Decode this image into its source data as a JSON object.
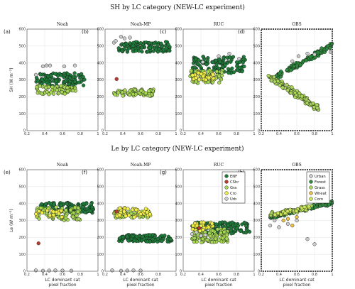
{
  "colors": {
    "ENF": "#1f7a3a",
    "CShr": "#c0392b",
    "Gra": "#a6d854",
    "Cro": "#f1ee4a",
    "Urb": "#cccccc",
    "Forest": "#2e8b3e",
    "Grass": "#a9d65a",
    "Wheat": "#e8c24a",
    "Corn": "#cbe85a",
    "Urban": "#cccccc"
  },
  "figure": {
    "row1_title": "SH by LC category (NEW-LC experiment)",
    "row2_title": "Le by LC category (NEW-LC experiment)"
  },
  "chart_data": [
    {
      "id": "a",
      "label": "(a)",
      "title": "Noah",
      "type": "scatter",
      "xlim": [
        0.2,
        1
      ],
      "ylim": [
        0,
        600
      ],
      "ylabel": "SH (W m⁻²)",
      "xlabel": "",
      "series": [
        {
          "name": "ENF",
          "cloud": {
            "x": [
              0.3,
              0.85
            ],
            "y": [
              265,
              340
            ],
            "n": 110
          }
        },
        {
          "name": "Gra",
          "cloud": {
            "x": [
              0.3,
              0.75
            ],
            "y": [
              215,
              265
            ],
            "n": 70
          }
        },
        {
          "name": "Urb",
          "points": [
            [
              0.3,
              330
            ],
            [
              0.38,
              380
            ],
            [
              0.42,
              385
            ],
            [
              0.46,
              385
            ],
            [
              0.62,
              380
            ],
            [
              0.74,
              385
            ]
          ]
        }
      ]
    },
    {
      "id": "b",
      "label": "(b)",
      "title": "Noah-MP",
      "type": "scatter",
      "xlim": [
        0.2,
        1
      ],
      "ylim": [
        0,
        600
      ],
      "ylabel": "",
      "xlabel": "",
      "series": [
        {
          "name": "ENF",
          "cloud": {
            "x": [
              0.35,
              0.95
            ],
            "y": [
              465,
              525
            ],
            "n": 110
          }
        },
        {
          "name": "Gra",
          "cloud": {
            "x": [
              0.3,
              0.75
            ],
            "y": [
              205,
              245
            ],
            "n": 70
          }
        },
        {
          "name": "CShr",
          "points": [
            [
              0.33,
              305
            ]
          ]
        },
        {
          "name": "Urb",
          "points": [
            [
              0.3,
              520
            ],
            [
              0.32,
              530
            ],
            [
              0.38,
              555
            ],
            [
              0.42,
              545
            ],
            [
              0.48,
              550
            ]
          ]
        }
      ]
    },
    {
      "id": "c",
      "label": "(c)",
      "title": "RUC",
      "type": "scatter",
      "xlim": [
        0.2,
        1
      ],
      "ylim": [
        0,
        600
      ],
      "ylabel": "",
      "xlabel": "",
      "series": [
        {
          "name": "ENF",
          "cloud": {
            "x": [
              0.3,
              0.9
            ],
            "y": [
              340,
              440
            ],
            "n": 120
          }
        },
        {
          "name": "Gra",
          "cloud": {
            "x": [
              0.28,
              0.65
            ],
            "y": [
              280,
              360
            ],
            "n": 80
          }
        },
        {
          "name": "Cro",
          "cloud": {
            "x": [
              0.3,
              0.55
            ],
            "y": [
              300,
              345
            ],
            "n": 30
          }
        },
        {
          "name": "Urb",
          "points": [
            [
              0.42,
              405
            ],
            [
              0.6,
              440
            ],
            [
              0.72,
              455
            ],
            [
              0.83,
              425
            ]
          ]
        }
      ]
    },
    {
      "id": "d",
      "label": "(d)",
      "title": "OBS",
      "type": "scatter",
      "xlim": [
        0.2,
        1
      ],
      "ylim": [
        0,
        600
      ],
      "ylabel": "",
      "xlabel": "",
      "series": [
        {
          "name": "Forest",
          "trend": {
            "x": [
              0.3,
              1.0
            ],
            "y": [
              300,
              505
            ],
            "spread": 22,
            "n": 130
          }
        },
        {
          "name": "Grass",
          "trend": {
            "x": [
              0.28,
              0.85
            ],
            "y": [
              320,
              130
            ],
            "spread": 28,
            "n": 150
          }
        },
        {
          "name": "Urban",
          "points": [
            [
              0.55,
              410
            ],
            [
              0.62,
              440
            ],
            [
              0.72,
              455
            ],
            [
              0.8,
              450
            ],
            [
              0.98,
              465
            ]
          ]
        }
      ]
    },
    {
      "id": "e",
      "label": "(e)",
      "title": "Noah",
      "type": "scatter",
      "xlim": [
        0.2,
        1
      ],
      "ylim": [
        0,
        600
      ],
      "ylabel": "Le (W m⁻²)",
      "xlabel": "LC dominant cat pixel fraction",
      "series": [
        {
          "name": "ENF",
          "cloud": {
            "x": [
              0.35,
              0.95
            ],
            "y": [
              345,
              405
            ],
            "n": 110
          }
        },
        {
          "name": "Gra",
          "cloud": {
            "x": [
              0.3,
              0.8
            ],
            "y": [
              300,
              380
            ],
            "n": 90
          }
        },
        {
          "name": "Cro",
          "cloud": {
            "x": [
              0.3,
              0.6
            ],
            "y": [
              320,
              360
            ],
            "n": 20
          }
        },
        {
          "name": "CShr",
          "points": [
            [
              0.33,
              165
            ]
          ]
        },
        {
          "name": "Urb",
          "points": [
            [
              0.3,
              5
            ],
            [
              0.38,
              3
            ],
            [
              0.45,
              4
            ],
            [
              0.52,
              5
            ],
            [
              0.6,
              4
            ],
            [
              0.7,
              3
            ]
          ]
        }
      ]
    },
    {
      "id": "f",
      "label": "(f)",
      "title": "Noah-MP",
      "type": "scatter",
      "xlim": [
        0.2,
        1
      ],
      "ylim": [
        0,
        600
      ],
      "ylabel": "",
      "xlabel": "LC dominant cat pixel fraction",
      "series": [
        {
          "name": "ENF",
          "cloud": {
            "x": [
              0.35,
              0.95
            ],
            "y": [
              175,
              215
            ],
            "n": 120
          }
        },
        {
          "name": "Gra",
          "cloud": {
            "x": [
              0.3,
              0.72
            ],
            "y": [
              315,
              355
            ],
            "n": 50
          }
        },
        {
          "name": "Cro",
          "cloud": {
            "x": [
              0.3,
              0.72
            ],
            "y": [
              318,
              375
            ],
            "n": 40
          }
        },
        {
          "name": "CShr",
          "points": [
            [
              0.33,
              352
            ]
          ]
        },
        {
          "name": "Urb",
          "points": [
            [
              0.28,
              5
            ],
            [
              0.38,
              3
            ],
            [
              0.45,
              4
            ],
            [
              0.52,
              5
            ],
            [
              0.6,
              4
            ]
          ]
        }
      ]
    },
    {
      "id": "g",
      "label": "(g)",
      "title": "RUC",
      "type": "scatter",
      "xlim": [
        0.2,
        1
      ],
      "ylim": [
        0,
        600
      ],
      "ylabel": "",
      "xlabel": "LC dominant cat pixel fraction",
      "series": [
        {
          "name": "ENF",
          "cloud": {
            "x": [
              0.3,
              0.95
            ],
            "y": [
              220,
              290
            ],
            "n": 130
          }
        },
        {
          "name": "Gra",
          "cloud": {
            "x": [
              0.3,
              0.7
            ],
            "y": [
              170,
              250
            ],
            "n": 100
          }
        },
        {
          "name": "Cro",
          "cloud": {
            "x": [
              0.3,
              0.55
            ],
            "y": [
              230,
              290
            ],
            "n": 25
          }
        },
        {
          "name": "CShr",
          "points": [
            [
              0.38,
              255
            ]
          ]
        },
        {
          "name": "Urb",
          "points": [
            [
              0.3,
              220
            ],
            [
              0.35,
              230
            ],
            [
              0.4,
              210
            ],
            [
              0.45,
              215
            ]
          ]
        }
      ]
    },
    {
      "id": "h",
      "label": "(h)",
      "title": "OBS",
      "type": "scatter",
      "xlim": [
        0.2,
        1
      ],
      "ylim": [
        0,
        600
      ],
      "ylabel": "",
      "xlabel": "LC dominant cat pixel fraction",
      "series": [
        {
          "name": "Forest",
          "trend": {
            "x": [
              0.3,
              1.0
            ],
            "y": [
              320,
              405
            ],
            "spread": 14,
            "n": 130
          }
        },
        {
          "name": "Grass",
          "trend": {
            "x": [
              0.3,
              0.8
            ],
            "y": [
              330,
              385
            ],
            "spread": 20,
            "n": 60
          }
        },
        {
          "name": "Corn",
          "trend": {
            "x": [
              0.35,
              0.75
            ],
            "y": [
              335,
              380
            ],
            "spread": 15,
            "n": 30
          }
        },
        {
          "name": "Wheat",
          "points": [
            [
              0.45,
              300
            ],
            [
              0.5,
              310
            ],
            [
              0.55,
              270
            ],
            [
              0.6,
              320
            ]
          ]
        },
        {
          "name": "Urban",
          "points": [
            [
              0.3,
              270
            ],
            [
              0.35,
              300
            ],
            [
              0.4,
              260
            ],
            [
              0.5,
              280
            ],
            [
              0.6,
              300
            ],
            [
              0.72,
              190
            ],
            [
              0.8,
              160
            ]
          ]
        }
      ]
    }
  ],
  "legend_model": {
    "entries": [
      {
        "name": "ENF",
        "label": "ENF"
      },
      {
        "name": "CShr",
        "label": "CShr"
      },
      {
        "name": "Gra",
        "label": "Gra"
      },
      {
        "name": "Cro",
        "label": "Cro"
      },
      {
        "name": "Urb",
        "label": "Urb"
      }
    ]
  },
  "legend_obs": {
    "entries": [
      {
        "name": "Urban",
        "label": "Urban"
      },
      {
        "name": "Forest",
        "label": "Forest"
      },
      {
        "name": "Grass",
        "label": "Grass"
      },
      {
        "name": "Wheat",
        "label": "Wheat"
      },
      {
        "name": "Corn",
        "label": "Corn"
      }
    ]
  }
}
